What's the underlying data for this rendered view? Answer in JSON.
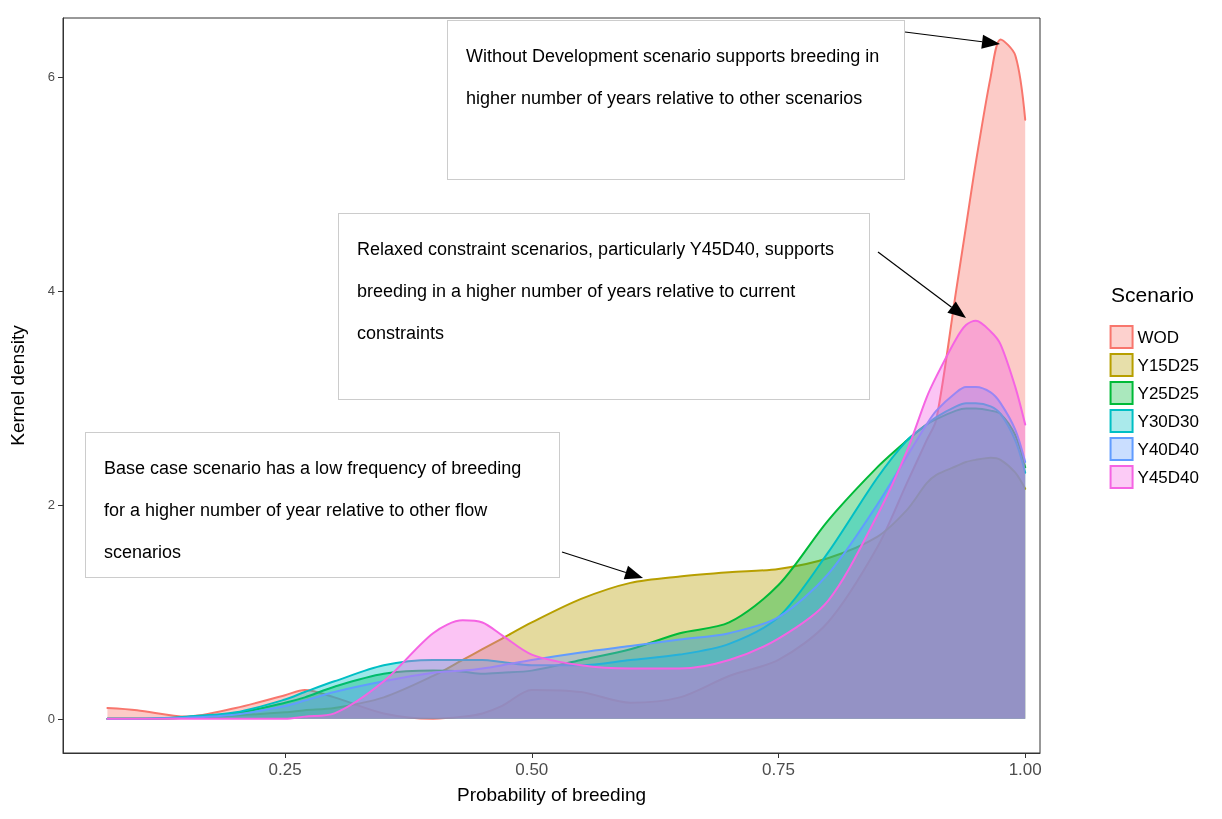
{
  "chart_data": {
    "type": "area",
    "xlabel": "Probability of breeding",
    "ylabel": "Kernel density",
    "legend_title": "Scenario",
    "xlim": [
      0.025,
      1.015
    ],
    "ylim": [
      -0.32,
      6.55
    ],
    "xticks": [
      {
        "value": 0.25,
        "label": "0.25"
      },
      {
        "value": 0.5,
        "label": "0.50"
      },
      {
        "value": 0.75,
        "label": "0.75"
      },
      {
        "value": 1,
        "label": "1.00"
      }
    ],
    "yticks": [
      0,
      2,
      4,
      6
    ],
    "grid": false,
    "legend": "right",
    "marker": "none",
    "line_style": "solid",
    "x": [
      0.07,
      0.1,
      0.15,
      0.2,
      0.25,
      0.27,
      0.3,
      0.35,
      0.4,
      0.43,
      0.45,
      0.47,
      0.5,
      0.55,
      0.6,
      0.65,
      0.7,
      0.75,
      0.8,
      0.85,
      0.88,
      0.9,
      0.91,
      0.93,
      0.94,
      0.95,
      0.965,
      0.975,
      0.99,
      1.0
    ],
    "series": [
      {
        "name": "WOD",
        "color": "#f8766d",
        "values": [
          0.1,
          0.08,
          0.02,
          0.1,
          0.22,
          0.27,
          0.2,
          0.05,
          0,
          0.02,
          0.05,
          0.12,
          0.27,
          0.25,
          0.15,
          0.2,
          0.4,
          0.55,
          0.9,
          1.6,
          2.2,
          2.6,
          2.8,
          4.0,
          4.6,
          5.2,
          6.0,
          6.35,
          6.2,
          5.6
        ]
      },
      {
        "name": "Y15D25",
        "color": "#b79f00",
        "values": [
          0,
          0,
          0.01,
          0.03,
          0.06,
          0.08,
          0.1,
          0.2,
          0.4,
          0.55,
          0.65,
          0.75,
          0.9,
          1.12,
          1.27,
          1.33,
          1.37,
          1.4,
          1.5,
          1.7,
          1.95,
          2.2,
          2.28,
          2.36,
          2.4,
          2.42,
          2.44,
          2.42,
          2.3,
          2.15
        ]
      },
      {
        "name": "Y25D25",
        "color": "#00ba38",
        "values": [
          0,
          0,
          0.01,
          0.05,
          0.15,
          0.2,
          0.3,
          0.42,
          0.45,
          0.44,
          0.42,
          0.43,
          0.45,
          0.55,
          0.65,
          0.8,
          0.9,
          1.25,
          1.85,
          2.35,
          2.6,
          2.75,
          2.8,
          2.88,
          2.9,
          2.9,
          2.88,
          2.85,
          2.65,
          2.35
        ]
      },
      {
        "name": "Y30D30",
        "color": "#00bfc4",
        "values": [
          0,
          0,
          0.02,
          0.06,
          0.18,
          0.25,
          0.35,
          0.5,
          0.55,
          0.55,
          0.55,
          0.53,
          0.5,
          0.5,
          0.55,
          0.6,
          0.7,
          0.95,
          1.55,
          2.25,
          2.6,
          2.75,
          2.82,
          2.92,
          2.95,
          2.95,
          2.92,
          2.85,
          2.6,
          2.3
        ]
      },
      {
        "name": "Y40D40",
        "color": "#619cff",
        "values": [
          0,
          0,
          0.01,
          0.04,
          0.12,
          0.17,
          0.25,
          0.35,
          0.43,
          0.45,
          0.47,
          0.5,
          0.55,
          0.62,
          0.68,
          0.74,
          0.8,
          0.95,
          1.35,
          2.0,
          2.45,
          2.75,
          2.88,
          3.05,
          3.1,
          3.1,
          3.05,
          2.95,
          2.7,
          2.4
        ]
      },
      {
        "name": "Y45D40",
        "color": "#f564e3",
        "values": [
          0,
          0,
          0,
          0,
          0,
          0.02,
          0.05,
          0.35,
          0.8,
          0.92,
          0.9,
          0.78,
          0.6,
          0.5,
          0.47,
          0.47,
          0.55,
          0.75,
          1.1,
          1.9,
          2.5,
          3.0,
          3.2,
          3.55,
          3.68,
          3.72,
          3.62,
          3.5,
          3.1,
          2.75
        ]
      }
    ],
    "annotations": [
      "Without Development scenario supports breeding in higher number of years relative to other scenarios",
      "Relaxed constraint scenarios, particularly Y45D40, supports breeding in a higher number of years relative to current constraints",
      "Base case scenario has a low frequency of breeding for a higher number of year relative to other flow scenarios"
    ]
  }
}
